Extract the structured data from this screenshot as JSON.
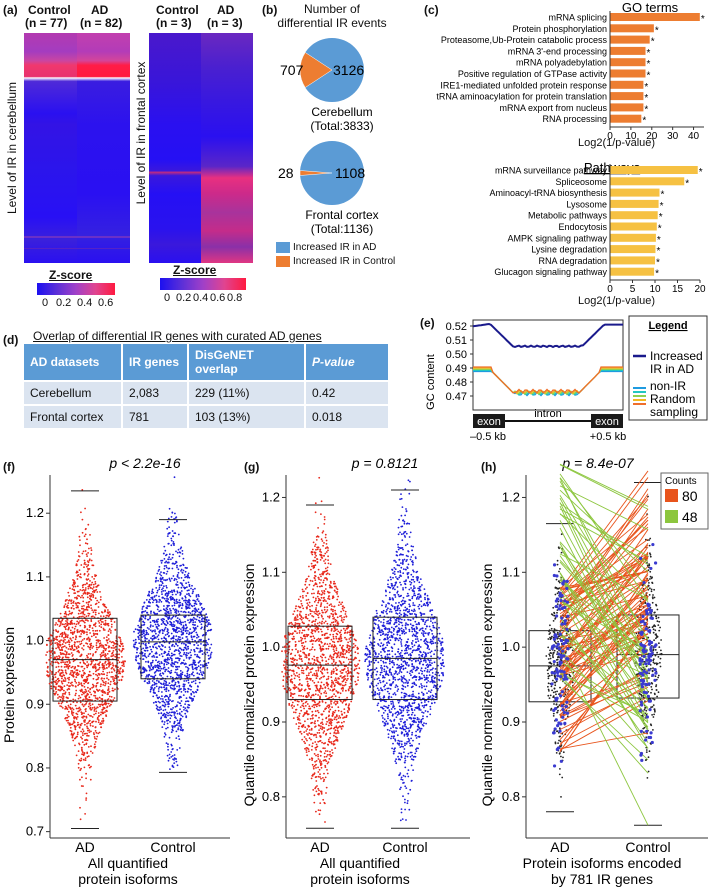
{
  "panel_a": {
    "label": "(a)",
    "cerebellum": {
      "col1": "Control",
      "col1_n": "(n = 77)",
      "col2": "AD",
      "col2_n": "(n = 82)",
      "ylabel": "Level of IR in cerebellum",
      "zscore_title": "Z-score",
      "ticks": [
        "0",
        "0.2",
        "0.4",
        "0.6"
      ]
    },
    "frontal": {
      "col1": "Control",
      "col1_n": "(n = 3)",
      "col2": "AD",
      "col2_n": "(n = 3)",
      "ylabel": "Level of IR in frontal cortex",
      "zscore_title": "Z-score",
      "ticks": [
        "0",
        "0.2",
        "0.4",
        "0.6",
        "0.8"
      ]
    }
  },
  "panel_b": {
    "label": "(b)",
    "title_line1": "Number of",
    "title_line2": "differential IR events",
    "cerebellum": {
      "control": 707,
      "ad": 3126,
      "control_text": "707",
      "ad_text": "3126",
      "name": "Cerebellum",
      "total": "(Total:3833)"
    },
    "frontal": {
      "control": 28,
      "ad": 1108,
      "control_text": "28",
      "ad_text": "1108",
      "name": "Frontal cortex",
      "total": "(Total:1136)"
    },
    "legend": [
      {
        "label": "Increased IR in AD",
        "color": "#5b9bd5"
      },
      {
        "label": "Increased IR in Control",
        "color": "#ed7d31"
      }
    ]
  },
  "panel_c": {
    "label": "(c)",
    "go_title": "GO terms",
    "go_bar_color": "#ed7d31",
    "pathway_title": "Pathways",
    "pathway_bar_color": "#f6c142",
    "xlabel": "Log2(1/p-value)",
    "go_axis_ticks": [
      "0",
      "10",
      "20",
      "30",
      "40"
    ],
    "pathway_axis_ticks": [
      "0",
      "5",
      "10",
      "15",
      "20"
    ],
    "star": "*",
    "chart_data": [
      {
        "type": "bar",
        "title": "GO terms",
        "categories": [
          "mRNA splicing",
          "Protein phosphorylation",
          "Proteasome,Ub-Protein catabolic process",
          "mRNA 3'-end processing",
          "mRNA polyadebylation",
          "Positive regulation of GTPase activity",
          "IRE1-mediated unfolded protein response",
          "tRNA aminoacylation for protein translation",
          "mRNA export from nucleus",
          "RNA  processing"
        ],
        "values": [
          43,
          21,
          19,
          17,
          17,
          17,
          16,
          16,
          16,
          15
        ],
        "xlabel": "Log2(1/p-value)",
        "xlim": [
          0,
          45
        ]
      },
      {
        "type": "bar",
        "title": "Pathways",
        "categories": [
          "mRNA surveillance pathway",
          "Spliceosome",
          "Aminoacyl-tRNA biosynthesis",
          "Lysosome",
          "Metabolic pathways",
          "Endocytosis",
          "AMPK signaling pathway",
          "Lysine degradation",
          "RNA degradation",
          "Glucagon signaling pathway"
        ],
        "values": [
          19.5,
          16.5,
          11,
          10.8,
          10.6,
          10.4,
          10.2,
          10.1,
          10,
          9.8
        ],
        "xlabel": "Log2(1/p-value)",
        "xlim": [
          0,
          20
        ]
      }
    ]
  },
  "panel_d": {
    "label": "(d)",
    "title": "Overlap of differential IR genes with curated AD genes",
    "headers": [
      "AD datasets",
      "IR genes",
      "DisGeNET overlap",
      "P-value"
    ],
    "rows": [
      [
        "Cerebellum",
        "2,083",
        "229 (11%)",
        "0.42"
      ],
      [
        "Frontal cortex",
        "781",
        "103 (13%)",
        "0.018"
      ]
    ]
  },
  "panel_e": {
    "label": "(e)",
    "ylabel": "GC content",
    "yticks": [
      "0.52",
      "0.51",
      "0.50",
      "0.49",
      "0.48",
      "0.47"
    ],
    "exon_left": "exon",
    "intron": "intron",
    "exon_right": "exon",
    "left_kb": "–0.5 kb",
    "right_kb": "+0.5 kb",
    "legend_title": "Legend",
    "legend_ad_line1": "Increased",
    "legend_ad_line2": "IR in AD",
    "legend_non_line1": "non-IR",
    "legend_non_line2": "Random",
    "legend_non_line3": "sampling",
    "ad_color": "#1a1a8c",
    "random_colors": [
      "#1f9be0",
      "#22c7c0",
      "#8fd14f",
      "#f2b81f",
      "#ef6f2c"
    ]
  },
  "panel_f": {
    "label": "(f)",
    "pvalue": "p < 2.2e-16",
    "ylabel": "Protein expression",
    "categories": [
      "AD",
      "Control"
    ],
    "xlabel_line1": "All quantified",
    "xlabel_line2": "protein isoforms",
    "yticks": [
      "0.7",
      "0.8",
      "0.9",
      "1.0",
      "1.1",
      "1.2"
    ],
    "ylim": [
      0.69,
      1.26
    ],
    "boxes": [
      {
        "q1": 0.905,
        "median": 0.97,
        "q3": 1.035,
        "whisker_low": 0.705,
        "whisker_high": 1.235
      },
      {
        "q1": 0.94,
        "median": 0.998,
        "q3": 1.04,
        "whisker_low": 0.793,
        "whisker_high": 1.19
      }
    ]
  },
  "panel_g": {
    "label": "(g)",
    "pvalue": "p = 0.8121",
    "ylabel": "Quantile normalized protein expression",
    "categories": [
      "AD",
      "Control"
    ],
    "xlabel_line1": "All quantified",
    "xlabel_line2": "protein isoforms",
    "yticks": [
      "0.8",
      "0.9",
      "1.0",
      "1.1",
      "1.2"
    ],
    "ylim": [
      0.745,
      1.23
    ],
    "boxes": [
      {
        "q1": 0.93,
        "median": 0.976,
        "q3": 1.028,
        "whisker_low": 0.758,
        "whisker_high": 1.19
      },
      {
        "q1": 0.93,
        "median": 0.985,
        "q3": 1.04,
        "whisker_low": 0.758,
        "whisker_high": 1.21
      }
    ]
  },
  "panel_h": {
    "label": "(h)",
    "pvalue": "p = 8.4e-07",
    "ylabel": "Quantile normalized protein expression",
    "categories": [
      "AD",
      "Control"
    ],
    "xlabel_line1": "Protein isoforms encoded",
    "xlabel_line2": "by 781 IR genes",
    "yticks": [
      "0.8",
      "0.9",
      "1.0",
      "1.1",
      "1.2"
    ],
    "ylim": [
      0.745,
      1.23
    ],
    "legend_title": "Counts",
    "counts": [
      {
        "value": "80",
        "color": "#e8541c"
      },
      {
        "value": "48",
        "color": "#8cc63e"
      }
    ],
    "boxes": [
      {
        "q1": 0.927,
        "median": 0.975,
        "q3": 1.022,
        "whisker_low": 0.78,
        "whisker_high": 1.165
      },
      {
        "q1": 0.932,
        "median": 0.99,
        "q3": 1.043,
        "whisker_low": 0.762,
        "whisker_high": 1.22
      }
    ]
  }
}
